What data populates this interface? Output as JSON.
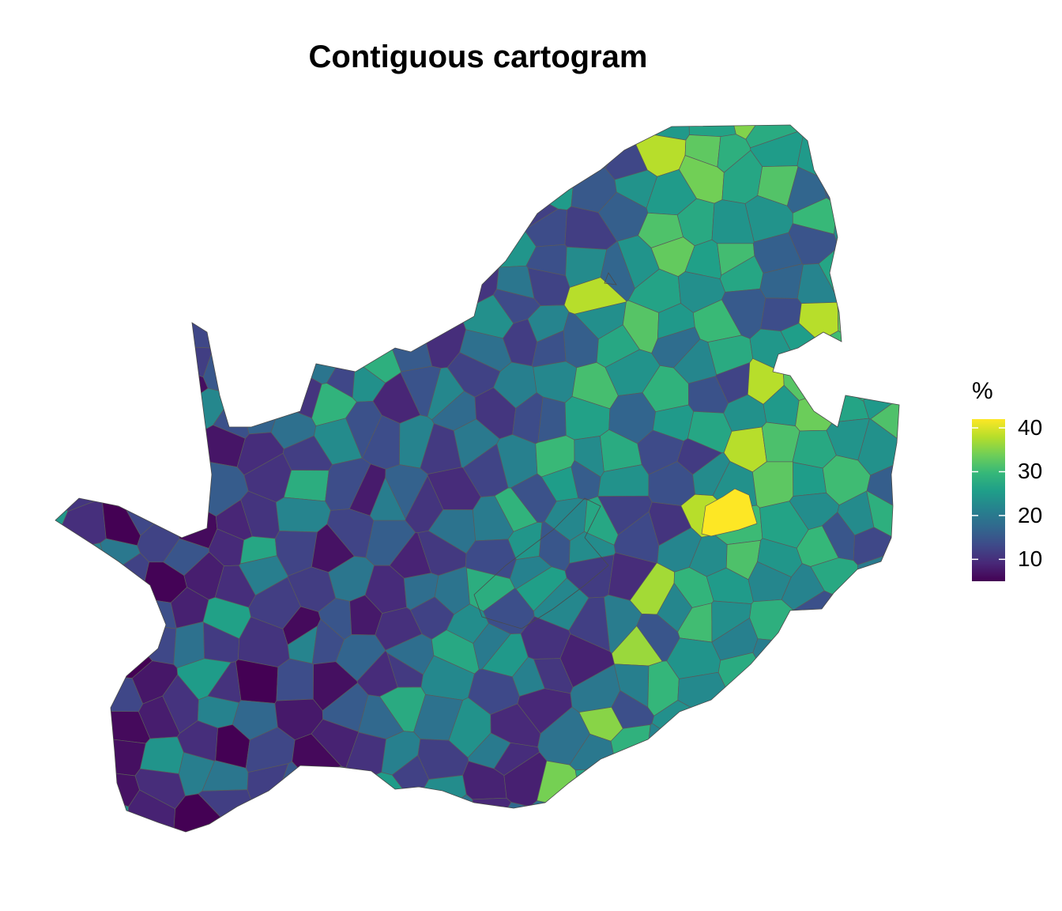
{
  "title": "Contiguous cartogram",
  "legend": {
    "title": "%",
    "ticks": [
      "10",
      "20",
      "30",
      "40"
    ],
    "tick_values": [
      10,
      20,
      30,
      40
    ],
    "min": 5,
    "max": 42,
    "palette": [
      "#440154",
      "#482878",
      "#3e4a89",
      "#31688e",
      "#26828e",
      "#1f9e89",
      "#35b779",
      "#6ece58",
      "#b5de2b",
      "#fde725"
    ]
  },
  "chart_data": {
    "type": "choropleth",
    "title": "Contiguous cartogram",
    "legend_title": "%",
    "value_range": [
      5,
      42
    ],
    "legend_placement": "right",
    "colormap": "viridis",
    "regions": [
      {
        "value": 21
      },
      {
        "value": 16
      },
      {
        "value": 27
      },
      {
        "value": 25
      },
      {
        "value": 18
      },
      {
        "value": 9
      },
      {
        "value": 12
      },
      {
        "value": 22
      },
      {
        "value": 30
      },
      {
        "value": 14
      },
      {
        "value": 20
      },
      {
        "value": 8
      },
      {
        "value": 6
      },
      {
        "value": 35
      },
      {
        "value": 33
      },
      {
        "value": 28
      },
      {
        "value": 24
      },
      {
        "value": 19
      },
      {
        "value": 11
      },
      {
        "value": 42
      },
      {
        "value": 15
      },
      {
        "value": 23
      },
      {
        "value": 17
      },
      {
        "value": 10
      },
      {
        "value": 26
      },
      {
        "value": 13
      },
      {
        "value": 31
      },
      {
        "value": 7
      },
      {
        "value": 29
      },
      {
        "value": 20
      }
    ]
  }
}
